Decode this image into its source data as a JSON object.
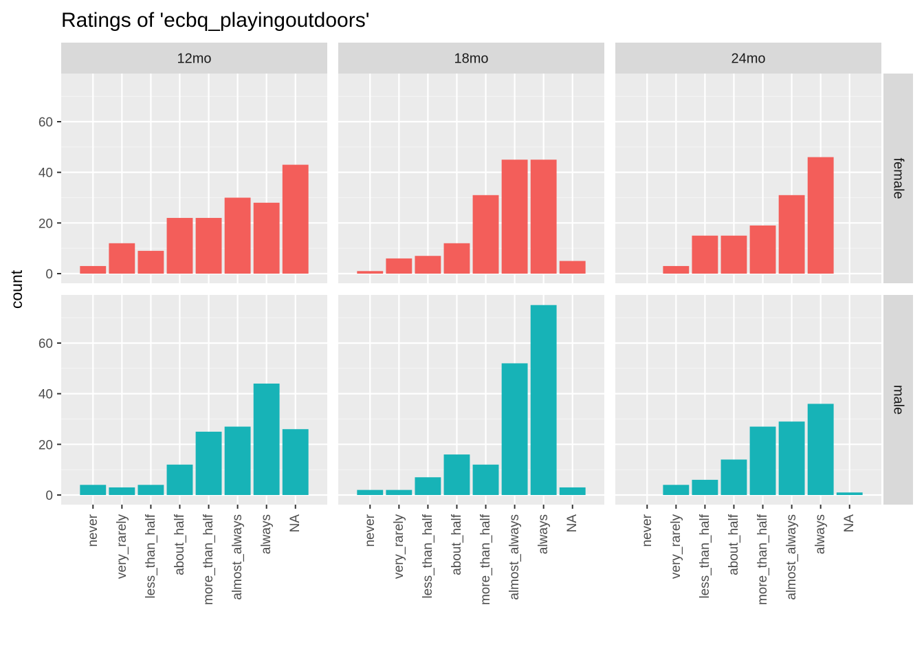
{
  "chart_data": {
    "type": "bar",
    "title": "Ratings of 'ecbq_playingoutdoors'",
    "xlabel": "",
    "ylabel": "count",
    "ylim": [
      -3.8,
      79
    ],
    "yticks": [
      0,
      20,
      40,
      60
    ],
    "grid": true,
    "categories": [
      "never",
      "very_rarely",
      "less_than_half",
      "about_half",
      "more_than_half",
      "almost_always",
      "always",
      "NA"
    ],
    "columns": [
      "12mo",
      "18mo",
      "24mo"
    ],
    "rows": [
      "female",
      "male"
    ],
    "colors": {
      "female": "#F35E5A",
      "male": "#17B3B7"
    },
    "panels": [
      {
        "column": "12mo",
        "row": "female",
        "values": [
          3,
          12,
          9,
          22,
          22,
          30,
          28,
          43
        ]
      },
      {
        "column": "18mo",
        "row": "female",
        "values": [
          1,
          6,
          7,
          12,
          31,
          45,
          45,
          5
        ]
      },
      {
        "column": "24mo",
        "row": "female",
        "values": [
          0,
          3,
          15,
          15,
          19,
          31,
          46,
          0
        ]
      },
      {
        "column": "12mo",
        "row": "male",
        "values": [
          4,
          3,
          4,
          12,
          25,
          27,
          44,
          26
        ]
      },
      {
        "column": "18mo",
        "row": "male",
        "values": [
          2,
          2,
          7,
          16,
          12,
          52,
          75,
          3
        ]
      },
      {
        "column": "24mo",
        "row": "male",
        "values": [
          0,
          4,
          6,
          14,
          27,
          29,
          36,
          1
        ]
      }
    ]
  }
}
